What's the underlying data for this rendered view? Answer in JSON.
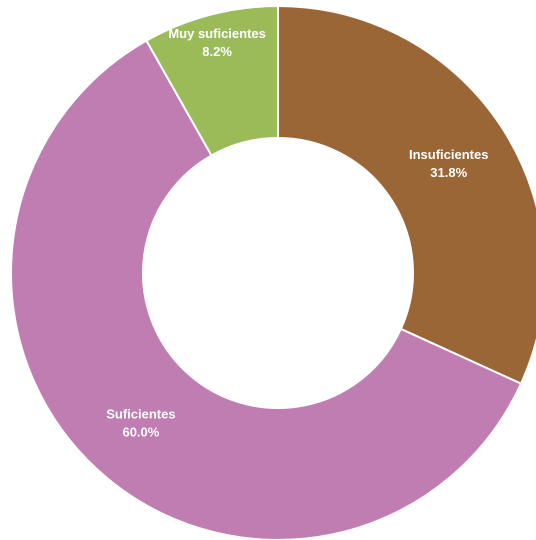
{
  "chart_data": {
    "type": "pie",
    "variant": "donut",
    "title": "",
    "start_angle_deg": 0,
    "direction": "clockwise",
    "slices": [
      {
        "label": "Insuficientes",
        "value": 31.8,
        "display": "31.8%",
        "color": "#9B6636"
      },
      {
        "label": "Suficientes",
        "value": 60.0,
        "display": "60.0%",
        "color": "#C07DB1"
      },
      {
        "label": "Muy suficientes",
        "value": 8.2,
        "display": "8.2%",
        "color": "#9BBB59"
      }
    ],
    "legend": "none",
    "data_labels": "inside"
  }
}
